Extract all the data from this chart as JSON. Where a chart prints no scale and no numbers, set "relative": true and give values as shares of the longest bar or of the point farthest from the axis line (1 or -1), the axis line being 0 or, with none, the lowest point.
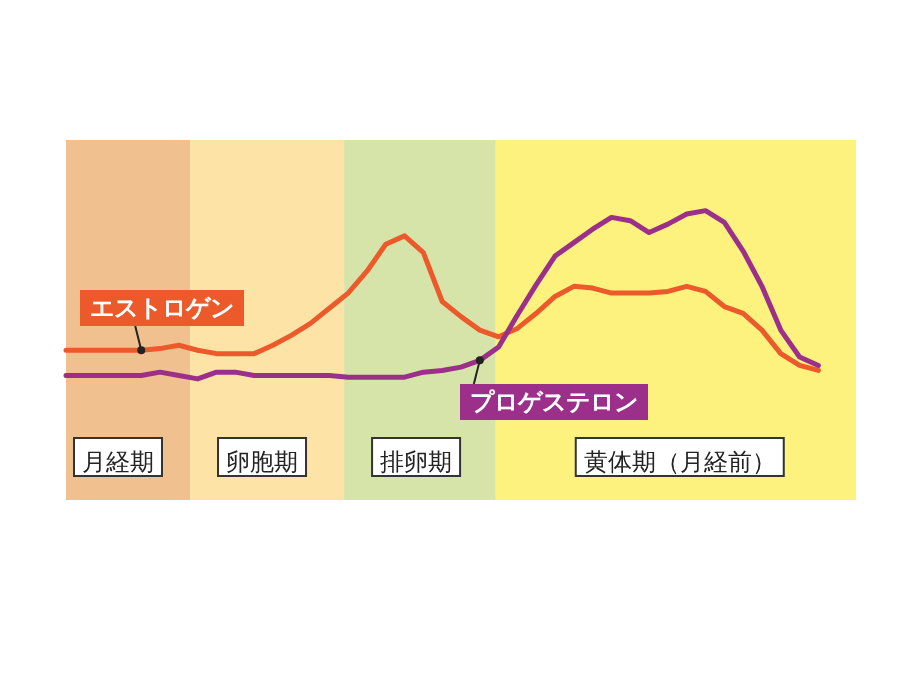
{
  "chart_data": {
    "type": "line",
    "relative": true,
    "legend": "bottom right",
    "categories": [
      null,
      null,
      null,
      null,
      null,
      null,
      null,
      null,
      null,
      null,
      null,
      null,
      null,
      null,
      null,
      null,
      null,
      null,
      null,
      null,
      null,
      null,
      null,
      null,
      null,
      null,
      null,
      null,
      null,
      null,
      null,
      null,
      null,
      null,
      null,
      null,
      null,
      null,
      null,
      null,
      null
    ],
    "series": [
      {
        "name": "エストロゲン",
        "color": "#ec5a2c",
        "values": [
          0.17,
          0.17,
          0.17,
          0.17,
          0.17,
          0.18,
          0.2,
          0.17,
          0.15,
          0.15,
          0.15,
          0.2,
          0.26,
          0.33,
          0.42,
          0.51,
          0.64,
          0.8,
          0.85,
          0.75,
          0.46,
          0.37,
          0.29,
          0.25,
          0.3,
          0.39,
          0.49,
          0.55,
          0.54,
          0.51,
          0.51,
          0.51,
          0.52,
          0.55,
          0.52,
          0.43,
          0.39,
          0.29,
          0.15,
          0.08,
          0.05
        ]
      },
      {
        "name": "プロゲステロン",
        "color": "#9b2f8a",
        "values": [
          0.02,
          0.02,
          0.02,
          0.02,
          0.02,
          0.04,
          0.02,
          0,
          0.04,
          0.04,
          0.02,
          0.02,
          0.02,
          0.02,
          0.02,
          0.01,
          0.01,
          0.01,
          0.01,
          0.04,
          0.05,
          0.07,
          0.11,
          0.19,
          0.38,
          0.56,
          0.73,
          0.81,
          0.89,
          0.96,
          0.94,
          0.87,
          0.92,
          0.98,
          1,
          0.93,
          0.76,
          0.55,
          0.29,
          0.13,
          0.08
        ]
      }
    ],
    "annotations": [
      "月経期",
      "卵胞期",
      "排卵期",
      "黄体期（月経前）"
    ]
  }
}
